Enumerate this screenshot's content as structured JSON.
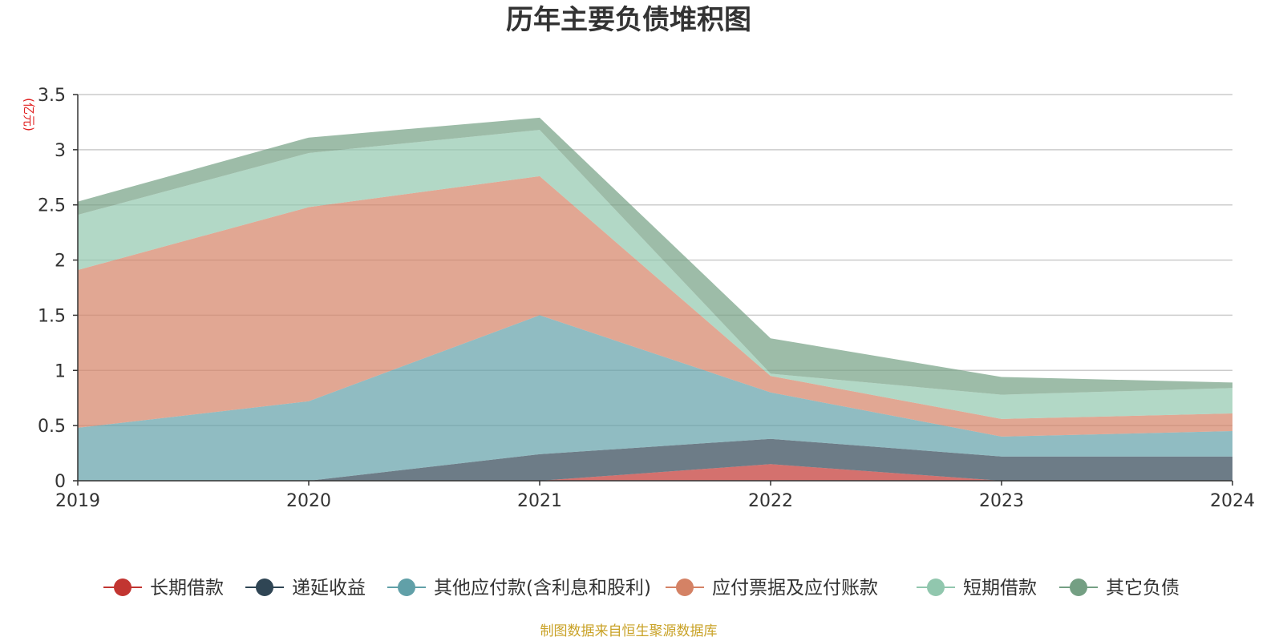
{
  "chart_data": {
    "type": "area",
    "stacked": true,
    "title": "历年主要负债堆积图",
    "unit": "(亿元)",
    "x": [
      "2019",
      "2020",
      "2021",
      "2022",
      "2023",
      "2024"
    ],
    "ylim": [
      0,
      3.5
    ],
    "yticks": [
      "0",
      "0.5",
      "1",
      "1.5",
      "2",
      "2.5",
      "3",
      "3.5"
    ],
    "grid": true,
    "legend_position": "bottom",
    "series": [
      {
        "name": "长期借款",
        "color": "#c23531",
        "values": [
          0,
          0,
          0,
          0.15,
          0,
          0
        ]
      },
      {
        "name": "递延收益",
        "color": "#2f4554",
        "values": [
          0,
          0,
          0.24,
          0.23,
          0.22,
          0.22
        ]
      },
      {
        "name": "其他应付款(含利息和股利)",
        "color": "#61a0a8",
        "values": [
          0.48,
          0.72,
          1.26,
          0.42,
          0.18,
          0.23
        ]
      },
      {
        "name": "应付票据及应付账款",
        "color": "#d48265",
        "values": [
          1.43,
          1.76,
          1.26,
          0.15,
          0.16,
          0.16
        ]
      },
      {
        "name": "短期借款",
        "color": "#91c7ae",
        "values": [
          0.5,
          0.49,
          0.42,
          0.02,
          0.22,
          0.23
        ]
      },
      {
        "name": "其它负债",
        "color": "#749f83",
        "values": [
          0.12,
          0.14,
          0.11,
          0.32,
          0.16,
          0.05
        ]
      }
    ]
  },
  "footer": {
    "source": "制图数据来自恒生聚源数据库"
  }
}
